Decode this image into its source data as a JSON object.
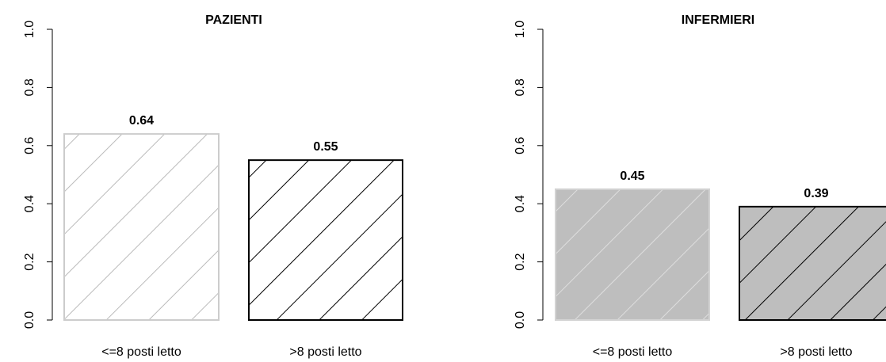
{
  "chart_data": [
    {
      "type": "bar",
      "title": "PAZIENTI",
      "categories": [
        "<=8 posti letto",
        ">8 posti letto"
      ],
      "values": [
        0.64,
        0.55
      ],
      "value_labels": [
        "0.64",
        "0.55"
      ],
      "ylim": [
        0,
        1
      ],
      "yticks": [
        "0.0",
        "0.2",
        "0.4",
        "0.6",
        "0.8",
        "1.0"
      ],
      "bar_styles": [
        {
          "fill": "#ffffff",
          "border": "#cccccc",
          "hatch": "#bbbbbb"
        },
        {
          "fill": "#ffffff",
          "border": "#000000",
          "hatch": "#000000"
        }
      ],
      "grid": false,
      "legend": "none"
    },
    {
      "type": "bar",
      "title": "INFERMIERI",
      "categories": [
        "<=8 posti letto",
        ">8 posti letto"
      ],
      "values": [
        0.45,
        0.39
      ],
      "value_labels": [
        "0.45",
        "0.39"
      ],
      "ylim": [
        0,
        1
      ],
      "yticks": [
        "0.0",
        "0.2",
        "0.4",
        "0.6",
        "0.8",
        "1.0"
      ],
      "bar_styles": [
        {
          "fill": "#bebebe",
          "border": "#d3d3d3",
          "hatch": "#dedede"
        },
        {
          "fill": "#bebebe",
          "border": "#000000",
          "hatch": "#000000"
        }
      ],
      "grid": false,
      "legend": "none"
    }
  ]
}
